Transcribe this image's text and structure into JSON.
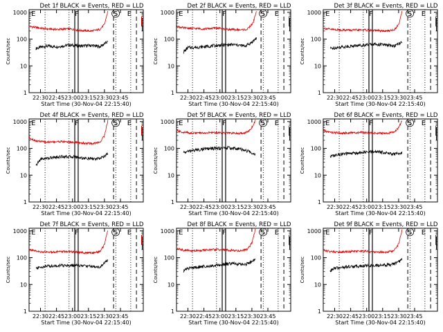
{
  "figure": {
    "xlabel": "Start Time (30-Nov-04 22:15:40)",
    "ylabel": "Counts/sec",
    "ytick_labels": [
      "1",
      "10",
      "100",
      "1000"
    ],
    "xtick_labels": [
      "22:30",
      "22:45",
      "23:00",
      "23:15",
      "23:30",
      "23:45"
    ],
    "marker_labels": [
      "E",
      "F",
      "S",
      "E"
    ],
    "colors": {
      "events": "#000000",
      "lld": "#e00000",
      "frame": "#000000"
    }
  },
  "chart_data": [
    {
      "type": "line",
      "title": "Det 1f BLACK = Events, RED = LLD",
      "ylim": [
        1,
        1000
      ],
      "yscale": "log",
      "series": [
        {
          "name": "Events",
          "color": "#000000",
          "points": [
            [
              0.06,
              45
            ],
            [
              0.15,
              55
            ],
            [
              0.25,
              52
            ],
            [
              0.35,
              60
            ],
            [
              0.45,
              55
            ],
            [
              0.55,
              58
            ],
            [
              0.62,
              52
            ],
            [
              0.69,
              80
            ]
          ]
        },
        {
          "name": "LLD",
          "color": "#e00000",
          "points": [
            [
              0.0,
              300
            ],
            [
              0.06,
              270
            ],
            [
              0.15,
              240
            ],
            [
              0.25,
              230
            ],
            [
              0.35,
              240
            ],
            [
              0.45,
              210
            ],
            [
              0.55,
              200
            ],
            [
              0.62,
              230
            ],
            [
              0.66,
              350
            ],
            [
              0.69,
              1100
            ]
          ]
        }
      ]
    },
    {
      "type": "line",
      "title": "Det 2f BLACK = Events, RED = LLD",
      "ylim": [
        1,
        1000
      ],
      "yscale": "log",
      "series": [
        {
          "name": "Events",
          "color": "#000000",
          "points": [
            [
              0.06,
              32
            ],
            [
              0.1,
              48
            ],
            [
              0.2,
              50
            ],
            [
              0.3,
              55
            ],
            [
              0.4,
              60
            ],
            [
              0.5,
              62
            ],
            [
              0.6,
              55
            ],
            [
              0.66,
              75
            ],
            [
              0.7,
              110
            ]
          ]
        },
        {
          "name": "LLD",
          "color": "#e00000",
          "points": [
            [
              0.0,
              300
            ],
            [
              0.06,
              260
            ],
            [
              0.15,
              250
            ],
            [
              0.25,
              240
            ],
            [
              0.35,
              260
            ],
            [
              0.45,
              230
            ],
            [
              0.55,
              220
            ],
            [
              0.62,
              230
            ],
            [
              0.67,
              400
            ],
            [
              0.7,
              1100
            ]
          ]
        }
      ]
    },
    {
      "type": "line",
      "title": "Det 3f BLACK = Events, RED = LLD",
      "ylim": [
        1,
        1000
      ],
      "yscale": "log",
      "series": [
        {
          "name": "Events",
          "color": "#000000",
          "points": [
            [
              0.06,
              45
            ],
            [
              0.15,
              50
            ],
            [
              0.25,
              55
            ],
            [
              0.35,
              60
            ],
            [
              0.45,
              65
            ],
            [
              0.55,
              60
            ],
            [
              0.62,
              55
            ],
            [
              0.69,
              75
            ]
          ]
        },
        {
          "name": "LLD",
          "color": "#e00000",
          "points": [
            [
              0.0,
              260
            ],
            [
              0.06,
              230
            ],
            [
              0.15,
              220
            ],
            [
              0.25,
              215
            ],
            [
              0.35,
              220
            ],
            [
              0.45,
              210
            ],
            [
              0.55,
              200
            ],
            [
              0.62,
              220
            ],
            [
              0.66,
              350
            ],
            [
              0.69,
              1100
            ]
          ]
        }
      ]
    },
    {
      "type": "line",
      "title": "Det 4f BLACK = Events, RED = LLD",
      "ylim": [
        1,
        1000
      ],
      "yscale": "log",
      "series": [
        {
          "name": "Events",
          "color": "#000000",
          "points": [
            [
              0.06,
              22
            ],
            [
              0.1,
              40
            ],
            [
              0.2,
              45
            ],
            [
              0.3,
              50
            ],
            [
              0.4,
              48
            ],
            [
              0.5,
              42
            ],
            [
              0.6,
              40
            ],
            [
              0.66,
              50
            ],
            [
              0.69,
              65
            ]
          ]
        },
        {
          "name": "LLD",
          "color": "#e00000",
          "points": [
            [
              0.0,
              250
            ],
            [
              0.06,
              190
            ],
            [
              0.15,
              170
            ],
            [
              0.25,
              180
            ],
            [
              0.35,
              175
            ],
            [
              0.45,
              160
            ],
            [
              0.55,
              150
            ],
            [
              0.62,
              170
            ],
            [
              0.66,
              300
            ],
            [
              0.69,
              1100
            ]
          ]
        }
      ]
    },
    {
      "type": "line",
      "title": "Det 5f BLACK = Events, RED = LLD",
      "ylim": [
        1,
        1000
      ],
      "yscale": "log",
      "series": [
        {
          "name": "Events",
          "color": "#000000",
          "points": [
            [
              0.06,
              70
            ],
            [
              0.15,
              85
            ],
            [
              0.25,
              95
            ],
            [
              0.35,
              100
            ],
            [
              0.45,
              105
            ],
            [
              0.55,
              95
            ],
            [
              0.62,
              80
            ],
            [
              0.69,
              60
            ]
          ]
        },
        {
          "name": "LLD",
          "color": "#e00000",
          "points": [
            [
              0.0,
              450
            ],
            [
              0.06,
              400
            ],
            [
              0.15,
              370
            ],
            [
              0.25,
              380
            ],
            [
              0.35,
              390
            ],
            [
              0.45,
              370
            ],
            [
              0.55,
              360
            ],
            [
              0.62,
              400
            ],
            [
              0.66,
              600
            ],
            [
              0.69,
              1100
            ]
          ]
        }
      ]
    },
    {
      "type": "line",
      "title": "Det 6f BLACK = Events, RED = LLD",
      "ylim": [
        1,
        1000
      ],
      "yscale": "log",
      "series": [
        {
          "name": "Events",
          "color": "#000000",
          "points": [
            [
              0.06,
              50
            ],
            [
              0.15,
              60
            ],
            [
              0.25,
              65
            ],
            [
              0.35,
              70
            ],
            [
              0.45,
              75
            ],
            [
              0.55,
              70
            ],
            [
              0.62,
              60
            ],
            [
              0.69,
              70
            ]
          ]
        },
        {
          "name": "LLD",
          "color": "#e00000",
          "points": [
            [
              0.0,
              450
            ],
            [
              0.06,
              400
            ],
            [
              0.15,
              370
            ],
            [
              0.25,
              380
            ],
            [
              0.35,
              390
            ],
            [
              0.45,
              370
            ],
            [
              0.55,
              360
            ],
            [
              0.62,
              400
            ],
            [
              0.66,
              600
            ],
            [
              0.69,
              1100
            ]
          ]
        }
      ]
    },
    {
      "type": "line",
      "title": "Det 7f BLACK = Events, RED = LLD",
      "ylim": [
        1,
        1000
      ],
      "yscale": "log",
      "series": [
        {
          "name": "Events",
          "color": "#000000",
          "points": [
            [
              0.06,
              40
            ],
            [
              0.15,
              48
            ],
            [
              0.25,
              50
            ],
            [
              0.35,
              52
            ],
            [
              0.45,
              50
            ],
            [
              0.55,
              48
            ],
            [
              0.62,
              45
            ],
            [
              0.69,
              80
            ]
          ]
        },
        {
          "name": "LLD",
          "color": "#e00000",
          "points": [
            [
              0.0,
              200
            ],
            [
              0.06,
              170
            ],
            [
              0.15,
              160
            ],
            [
              0.25,
              165
            ],
            [
              0.35,
              170
            ],
            [
              0.45,
              155
            ],
            [
              0.55,
              150
            ],
            [
              0.62,
              170
            ],
            [
              0.66,
              300
            ],
            [
              0.69,
              1100
            ]
          ]
        }
      ]
    },
    {
      "type": "line",
      "title": "Det 8f BLACK = Events, RED = LLD",
      "ylim": [
        1,
        1000
      ],
      "yscale": "log",
      "series": [
        {
          "name": "Events",
          "color": "#000000",
          "points": [
            [
              0.06,
              32
            ],
            [
              0.1,
              40
            ],
            [
              0.2,
              45
            ],
            [
              0.3,
              50
            ],
            [
              0.4,
              55
            ],
            [
              0.5,
              60
            ],
            [
              0.6,
              55
            ],
            [
              0.66,
              70
            ],
            [
              0.69,
              90
            ]
          ]
        },
        {
          "name": "LLD",
          "color": "#e00000",
          "points": [
            [
              0.0,
              220
            ],
            [
              0.06,
              190
            ],
            [
              0.15,
              180
            ],
            [
              0.25,
              190
            ],
            [
              0.35,
              200
            ],
            [
              0.45,
              190
            ],
            [
              0.55,
              180
            ],
            [
              0.62,
              200
            ],
            [
              0.66,
              350
            ],
            [
              0.69,
              1100
            ]
          ]
        }
      ]
    },
    {
      "type": "line",
      "title": "Det 9f BLACK = Events, RED = LLD",
      "ylim": [
        1,
        1000
      ],
      "yscale": "log",
      "series": [
        {
          "name": "Events",
          "color": "#000000",
          "points": [
            [
              0.06,
              32
            ],
            [
              0.1,
              40
            ],
            [
              0.2,
              45
            ],
            [
              0.3,
              48
            ],
            [
              0.4,
              50
            ],
            [
              0.5,
              52
            ],
            [
              0.6,
              55
            ],
            [
              0.66,
              70
            ],
            [
              0.69,
              85
            ]
          ]
        },
        {
          "name": "LLD",
          "color": "#e00000",
          "points": [
            [
              0.0,
              190
            ],
            [
              0.06,
              170
            ],
            [
              0.15,
              165
            ],
            [
              0.25,
              170
            ],
            [
              0.35,
              175
            ],
            [
              0.45,
              165
            ],
            [
              0.55,
              160
            ],
            [
              0.62,
              180
            ],
            [
              0.66,
              320
            ],
            [
              0.69,
              1100
            ]
          ]
        }
      ]
    }
  ]
}
